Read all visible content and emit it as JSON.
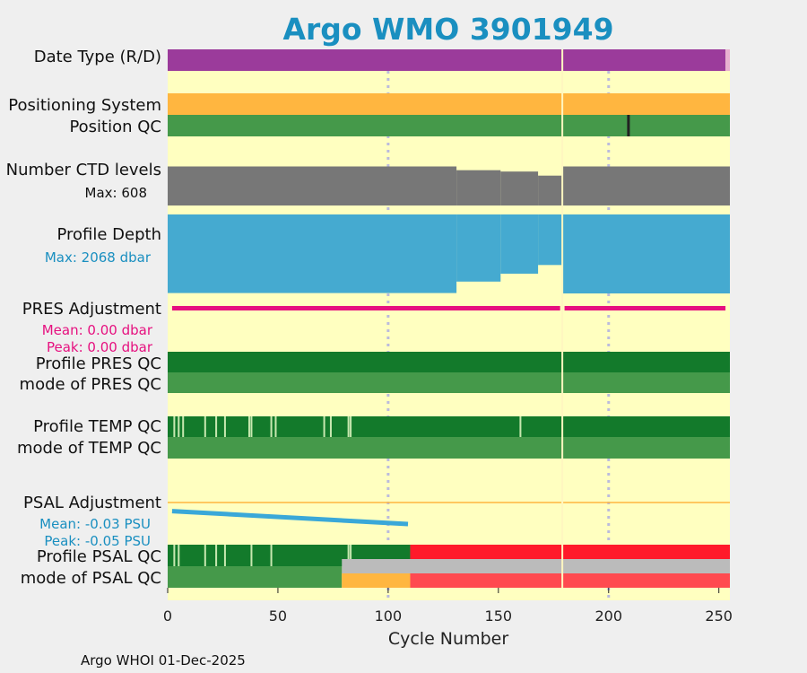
{
  "chart_data": {
    "type": "bar",
    "title": "Argo WMO 3901949",
    "xlabel": "Cycle Number",
    "xlim": [
      0,
      255
    ],
    "xticks": [
      "0",
      "50",
      "100",
      "150",
      "200",
      "250"
    ],
    "footer": "Argo WHOI 01-Dec-2025",
    "colors": {
      "background": "#ffffc0",
      "figure": "#efefef",
      "title": "#1a8fc0",
      "delayed": "#9b3b9b",
      "realtime": "#e8b0d0",
      "positioning": "#ffb640",
      "qc_good_light": "#45994a",
      "qc_good_dark": "#137a2b",
      "qc_bad": "#ff1a2a",
      "qc_bad_light": "#ff4a50",
      "qc_prob": "#ffb640",
      "qc_unknown": "#bbbbbb",
      "ctd_levels": "#777777",
      "profile_depth": "#45aad0",
      "pres_adj": "#e6107f",
      "psal_adj": "#3aa8d8",
      "psal_ref": "#ffb640",
      "grid": "#bbbbdd",
      "gap": "#fff6c0"
    },
    "gap_cycle": 179,
    "grid_cycles": [
      100,
      200
    ],
    "rows": {
      "date_type": {
        "label": "Date Type (R/D)",
        "delayed_until": 253,
        "realtime_until": 255
      },
      "positioning": {
        "label": "Positioning System"
      },
      "position_qc": {
        "label": "Position QC",
        "bad_cycles": [
          209
        ]
      },
      "ctd_levels": {
        "label": "Number CTD levels",
        "sublabel": "Max: 608",
        "max": 608,
        "segments": [
          {
            "from": 0,
            "to": 131,
            "value": 575
          },
          {
            "from": 131,
            "to": 151,
            "value": 520
          },
          {
            "from": 151,
            "to": 168,
            "value": 500
          },
          {
            "from": 168,
            "to": 179,
            "value": 440
          },
          {
            "from": 179,
            "to": 255,
            "value": 575
          }
        ]
      },
      "profile_depth": {
        "label": "Profile Depth",
        "sublabel": "Max: 2068 dbar",
        "max": 2068,
        "segments": [
          {
            "from": 0,
            "to": 131,
            "value": 1990
          },
          {
            "from": 131,
            "to": 151,
            "value": 1700
          },
          {
            "from": 151,
            "to": 168,
            "value": 1500
          },
          {
            "from": 168,
            "to": 179,
            "value": 1280
          },
          {
            "from": 179,
            "to": 255,
            "value": 2000
          }
        ]
      },
      "pres_adj": {
        "label": "PRES Adjustment",
        "mean": "Mean: 0.00 dbar",
        "peak": "Peak: 0.00 dbar",
        "segments": [
          {
            "from": 2,
            "to": 178
          },
          {
            "from": 180,
            "to": 253
          }
        ]
      },
      "profile_pres_qc": {
        "label": "Profile PRES QC"
      },
      "mode_pres_qc": {
        "label": "mode of PRES QC"
      },
      "profile_temp_qc": {
        "label": "Profile TEMP QC",
        "light_cycles": [
          3,
          5,
          7,
          17,
          22,
          26,
          38,
          37,
          47,
          49,
          71,
          74,
          82,
          83,
          160
        ]
      },
      "mode_temp_qc": {
        "label": "mode of TEMP QC"
      },
      "psal_adj": {
        "label": "PSAL Adjustment",
        "mean": "Mean: -0.03 PSU",
        "peak": "Peak: -0.05 PSU",
        "start_cycle": 2,
        "start_value": -0.02,
        "end_cycle": 109,
        "end_value": -0.05
      },
      "profile_psal_qc": {
        "label": "Profile PSAL QC",
        "good_until": 110,
        "light_cycles": [
          3,
          5,
          17,
          22,
          26,
          38,
          47,
          82,
          83
        ]
      },
      "mode_psal_qc": {
        "label": "mode of PSAL QC",
        "good_until": 79,
        "prob_until": 110
      }
    }
  }
}
